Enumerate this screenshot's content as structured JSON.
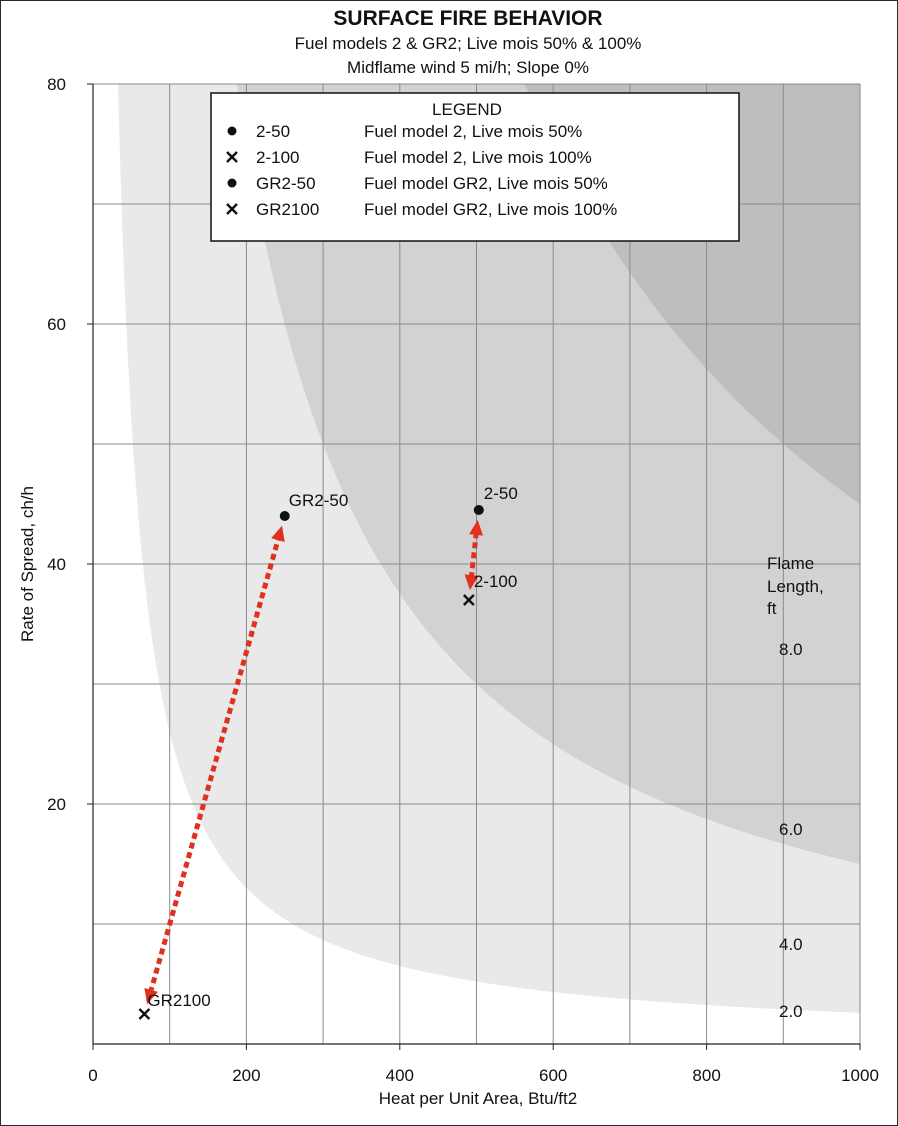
{
  "chart_data": {
    "type": "scatter",
    "title": "SURFACE FIRE BEHAVIOR",
    "subtitle_lines": [
      "Fuel models 2 & GR2; Live mois 50% & 100%",
      "Midflame wind 5 mi/h; Slope 0%"
    ],
    "xlabel": "Heat per Unit Area, Btu/ft2",
    "ylabel": "Rate of Spread, ch/h",
    "xlim": [
      0,
      1000
    ],
    "ylim": [
      0,
      80
    ],
    "x_ticks": [
      0,
      200,
      400,
      600,
      800,
      1000
    ],
    "y_ticks": [
      20,
      40,
      60,
      80
    ],
    "x_tick_labels": [
      "0",
      "200",
      "400",
      "600",
      "800",
      "1000"
    ],
    "y_tick_labels": [
      "20",
      "40",
      "60",
      "80"
    ],
    "grid": true,
    "points": [
      {
        "label": "2-50",
        "x": 503,
        "y": 44.5,
        "marker": "dot"
      },
      {
        "label": "2-100",
        "x": 490,
        "y": 37,
        "marker": "x"
      },
      {
        "label": "GR2-50",
        "x": 250,
        "y": 44,
        "marker": "dot"
      },
      {
        "label": "GR2100",
        "x": 67,
        "y": 2.5,
        "marker": "x"
      }
    ],
    "arrows": [
      {
        "from": "2-100",
        "to": "2-50",
        "bidirectional": true,
        "color": "#e03020"
      },
      {
        "from": "GR2100",
        "to": "GR2-50",
        "bidirectional": true,
        "color": "#e03020"
      }
    ],
    "flame_length_contours": {
      "title_lines": [
        "Flame",
        "Length,",
        "ft"
      ],
      "levels": [
        {
          "label": "2.0",
          "fill": "#e9e9e9"
        },
        {
          "label": "4.0",
          "fill": "#d2d2d2"
        },
        {
          "label": "6.0",
          "fill": "#bebebe"
        },
        {
          "label": "8.0",
          "fill": "#a9a9a9"
        }
      ]
    },
    "legend": {
      "title": "LEGEND",
      "placement": "top-center",
      "entries": [
        {
          "marker": "dot",
          "code": "2-50",
          "description": "Fuel model 2, Live mois 50%"
        },
        {
          "marker": "x",
          "code": "2-100",
          "description": "Fuel model 2, Live mois 100%"
        },
        {
          "marker": "dot",
          "code": "GR2-50",
          "description": "Fuel model GR2, Live mois 50%"
        },
        {
          "marker": "x",
          "code": "GR2100",
          "description": "Fuel model GR2, Live mois 100%"
        }
      ]
    }
  }
}
